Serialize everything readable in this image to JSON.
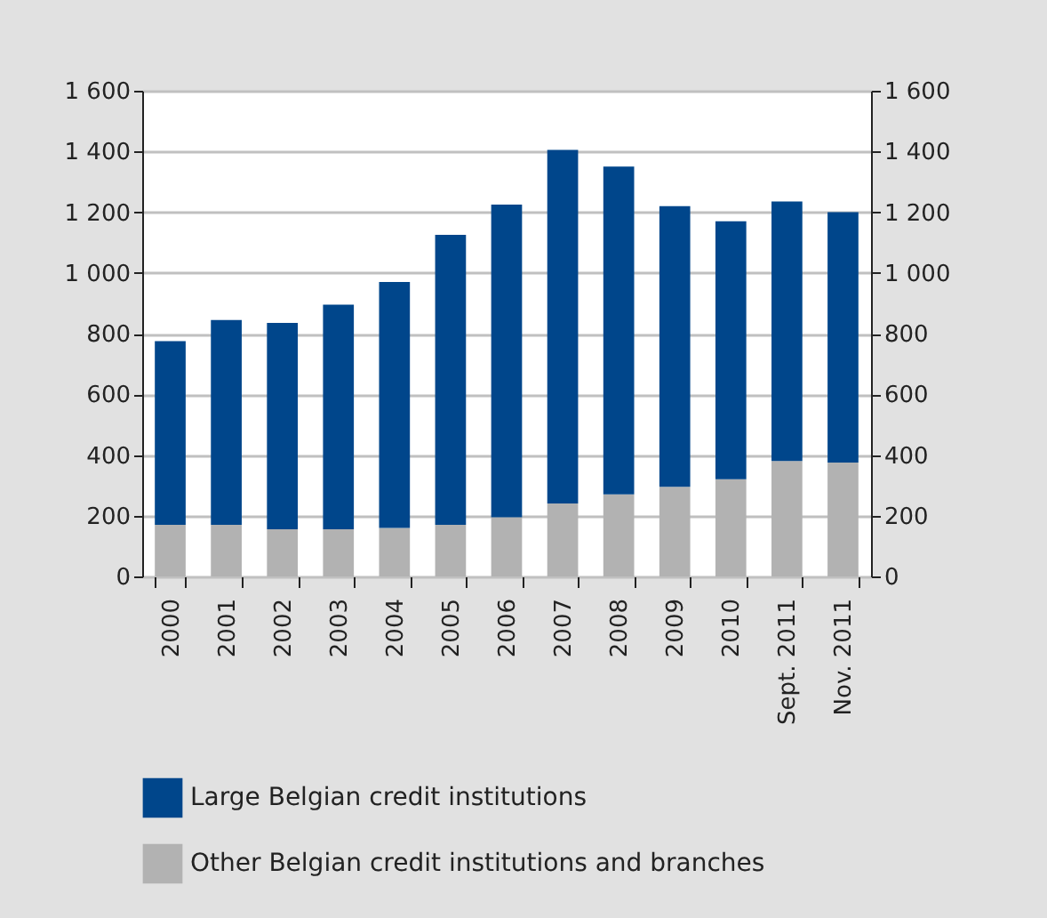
{
  "chart_data": {
    "type": "bar",
    "stacked": true,
    "categories": [
      "2000",
      "2001",
      "2002",
      "2003",
      "2004",
      "2005",
      "2006",
      "2007",
      "2008",
      "2009",
      "2010",
      "Sept. 2011",
      "Nov. 2011"
    ],
    "series": [
      {
        "name": "Other Belgian credit institutions and branches",
        "color": "#b2b2b2",
        "values": [
          170,
          170,
          155,
          155,
          160,
          170,
          195,
          240,
          270,
          295,
          320,
          380,
          375
        ]
      },
      {
        "name": "Large Belgian credit institutions",
        "color": "#00468b",
        "values": [
          605,
          675,
          680,
          740,
          810,
          955,
          1030,
          1165,
          1080,
          925,
          850,
          855,
          825
        ]
      }
    ],
    "ylim": [
      0,
      1600
    ],
    "yticks": [
      0,
      200,
      400,
      600,
      800,
      {
        "value": 1000,
        "label": "1 000"
      },
      {
        "value": 1200,
        "label": "1 200"
      },
      {
        "value": 1400,
        "label": "1 400"
      },
      {
        "value": 1600,
        "label": "1 600"
      }
    ],
    "y2lim": [
      0,
      1600
    ],
    "y2ticks": [
      0,
      200,
      400,
      600,
      800,
      {
        "value": 1000,
        "label": "1 000"
      },
      {
        "value": 1200,
        "label": "1 200"
      },
      {
        "value": 1400,
        "label": "1 400"
      },
      {
        "value": 1600,
        "label": "1 600"
      }
    ],
    "grid": "y",
    "legend": "bottom"
  }
}
